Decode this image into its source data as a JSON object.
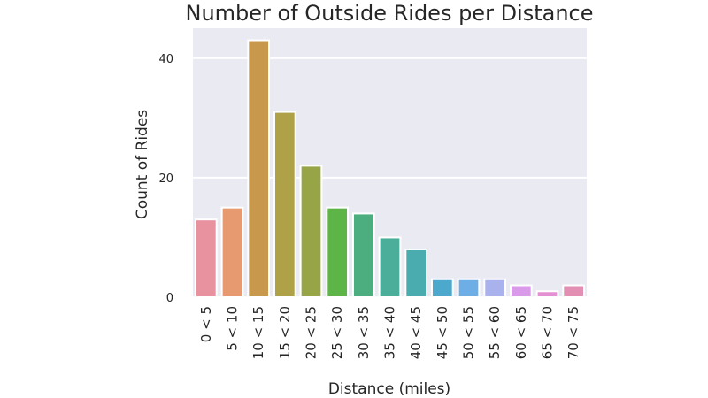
{
  "chart_data": {
    "type": "bar",
    "title": "Number of Outside Rides per Distance",
    "xlabel": "Distance (miles)",
    "ylabel": "Count of Rides",
    "categories": [
      "0 < 5",
      "5 < 10",
      "10 < 15",
      "15 < 20",
      "20 < 25",
      "25 < 30",
      "30 < 35",
      "35 < 40",
      "40 < 45",
      "45 < 50",
      "50 < 55",
      "55 < 60",
      "60 < 65",
      "65 < 70",
      "70 < 75"
    ],
    "values": [
      13,
      15,
      43,
      31,
      22,
      15,
      14,
      10,
      8,
      3,
      3,
      3,
      2,
      1,
      2
    ],
    "ylim": [
      0,
      45
    ],
    "yticks": [
      0,
      20,
      40
    ],
    "grid": true,
    "colors": [
      "#e8919f",
      "#e79a70",
      "#c8994d",
      "#aea148",
      "#98a546",
      "#5db548",
      "#4cae7e",
      "#4bae9a",
      "#4bacb0",
      "#4da8cd",
      "#6eaee6",
      "#aab2ed",
      "#d89ae9",
      "#e490d2",
      "#e28fb3"
    ],
    "plot_background": "#eaeaf2"
  }
}
